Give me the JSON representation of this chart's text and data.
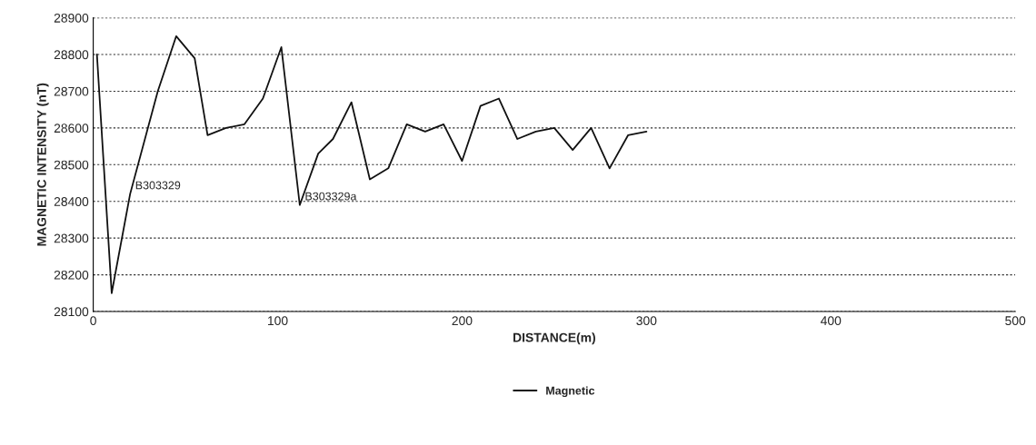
{
  "chart_data": {
    "type": "line",
    "xlabel": "DISTANCE(m)",
    "ylabel": "MAGNETIC INTENSITY (nT)",
    "x": [
      2,
      10,
      20,
      35,
      45,
      55,
      62,
      72,
      82,
      92,
      102,
      112,
      122,
      130,
      140,
      150,
      160,
      170,
      180,
      190,
      200,
      210,
      220,
      230,
      240,
      250,
      260,
      270,
      280,
      290,
      300
    ],
    "series": [
      {
        "name": "Magnetic",
        "color": "#111111",
        "values": [
          28800,
          28150,
          28420,
          28700,
          28850,
          28790,
          28580,
          28600,
          28610,
          28680,
          28820,
          28390,
          28530,
          28570,
          28670,
          28460,
          28490,
          28610,
          28590,
          28610,
          28510,
          28660,
          28680,
          28570,
          28590,
          28600,
          28540,
          28600,
          28490,
          28580,
          28590
        ]
      }
    ],
    "annotations": [
      {
        "text": "B303329",
        "x": 20,
        "y": 28420
      },
      {
        "text": "B303329a",
        "x": 112,
        "y": 28390
      }
    ],
    "xlim": [
      0,
      500
    ],
    "xticks": [
      0,
      100,
      200,
      300,
      400,
      500
    ],
    "ylim": [
      28100,
      28900
    ],
    "yticks": [
      28100,
      28200,
      28300,
      28400,
      28500,
      28600,
      28700,
      28800,
      28900
    ],
    "grid": "y",
    "legend": "bottom",
    "marker": "none",
    "line_style": "solid"
  }
}
